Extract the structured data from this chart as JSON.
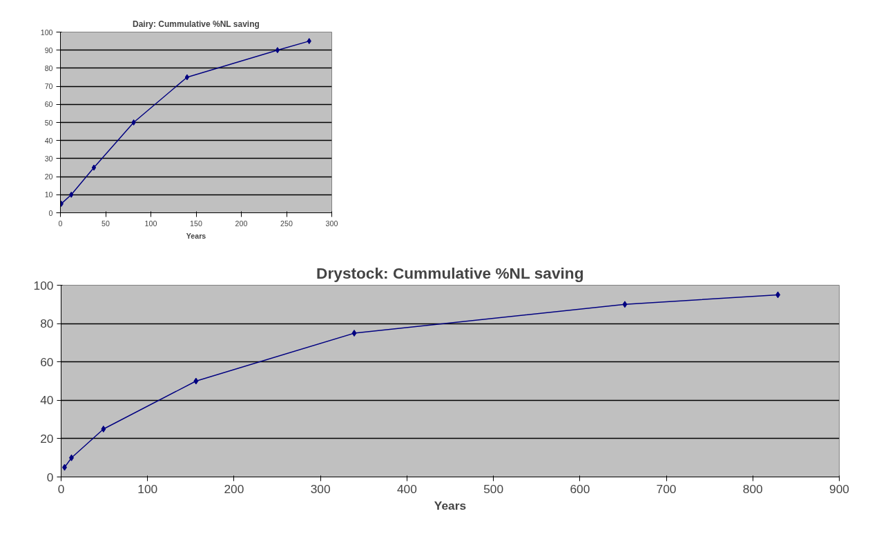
{
  "chart_data": [
    {
      "type": "line",
      "title": "Dairy: Cummulative %NL saving",
      "xlabel": "Years",
      "x": [
        1,
        12,
        37,
        81,
        140,
        240,
        275
      ],
      "series": [
        {
          "color": "#000080",
          "values": [
            5,
            10,
            25,
            50,
            75,
            90,
            95
          ]
        }
      ],
      "xlim": [
        0,
        300
      ],
      "xticks": [
        0,
        50,
        100,
        150,
        200,
        250,
        300
      ],
      "ylim": [
        0,
        100
      ],
      "yticks": [
        0,
        10,
        20,
        30,
        40,
        50,
        60,
        70,
        80,
        90,
        100
      ],
      "grid": "y",
      "marker": "diamond",
      "line_style": "solid"
    },
    {
      "type": "line",
      "title": "Drystock: Cummulative %NL saving",
      "xlabel": "Years",
      "x": [
        4,
        12,
        49,
        156,
        339,
        652,
        829
      ],
      "series": [
        {
          "color": "#000080",
          "values": [
            5,
            10,
            25,
            50,
            75,
            90,
            95
          ]
        }
      ],
      "xlim": [
        0,
        900
      ],
      "xticks": [
        0,
        100,
        200,
        300,
        400,
        500,
        600,
        700,
        800,
        900
      ],
      "ylim": [
        0,
        100
      ],
      "yticks": [
        0,
        20,
        40,
        60,
        80,
        100
      ],
      "grid": "y",
      "marker": "diamond",
      "line_style": "solid"
    }
  ]
}
